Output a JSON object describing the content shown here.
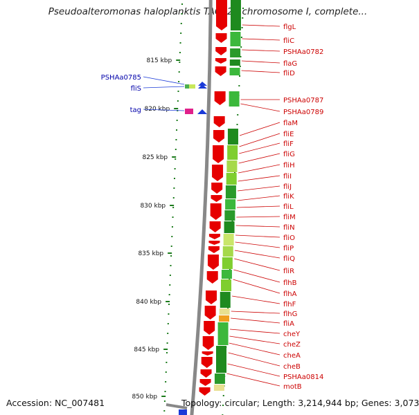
{
  "title": "Pseudoalteromonas haloplanktis TAC125 chromosome I, complete...",
  "footer": {
    "accession": "Accession: NC_007481",
    "topology": "Topology: circular; Length: 3,214,944 bp; Genes: 3,073"
  },
  "colors": {
    "cds_forward": "#e60000",
    "cds_shading": "#2b9a2b",
    "gene_label": "#cc0000",
    "left_gene_label": "#0000aa",
    "backbone": "#888888",
    "ticks": "#1a7a1a"
  },
  "scale": {
    "unit": "kbp",
    "ticks": [
      "815 kbp",
      "820 kbp",
      "825 kbp",
      "830 kbp",
      "835 kbp",
      "840 kbp",
      "845 kbp",
      "850 kbp"
    ]
  },
  "left_genes": [
    "PSHAa0785",
    "fliS",
    "tag"
  ],
  "right_genes": [
    "flgL",
    "fliC",
    "PSHAa0782",
    "flaG",
    "fliD",
    "PSHAa0787",
    "PSHAa0789",
    "flaM",
    "fliE",
    "fliF",
    "fliG",
    "fliH",
    "fliI",
    "fliJ",
    "fliK",
    "fliL",
    "fliM",
    "fliN",
    "fliO",
    "fliP",
    "fliQ",
    "fliR",
    "flhB",
    "flhA",
    "flhF",
    "flhG",
    "fliA",
    "cheY",
    "cheZ",
    "cheA",
    "cheB",
    "PSHAa0814",
    "motB"
  ]
}
